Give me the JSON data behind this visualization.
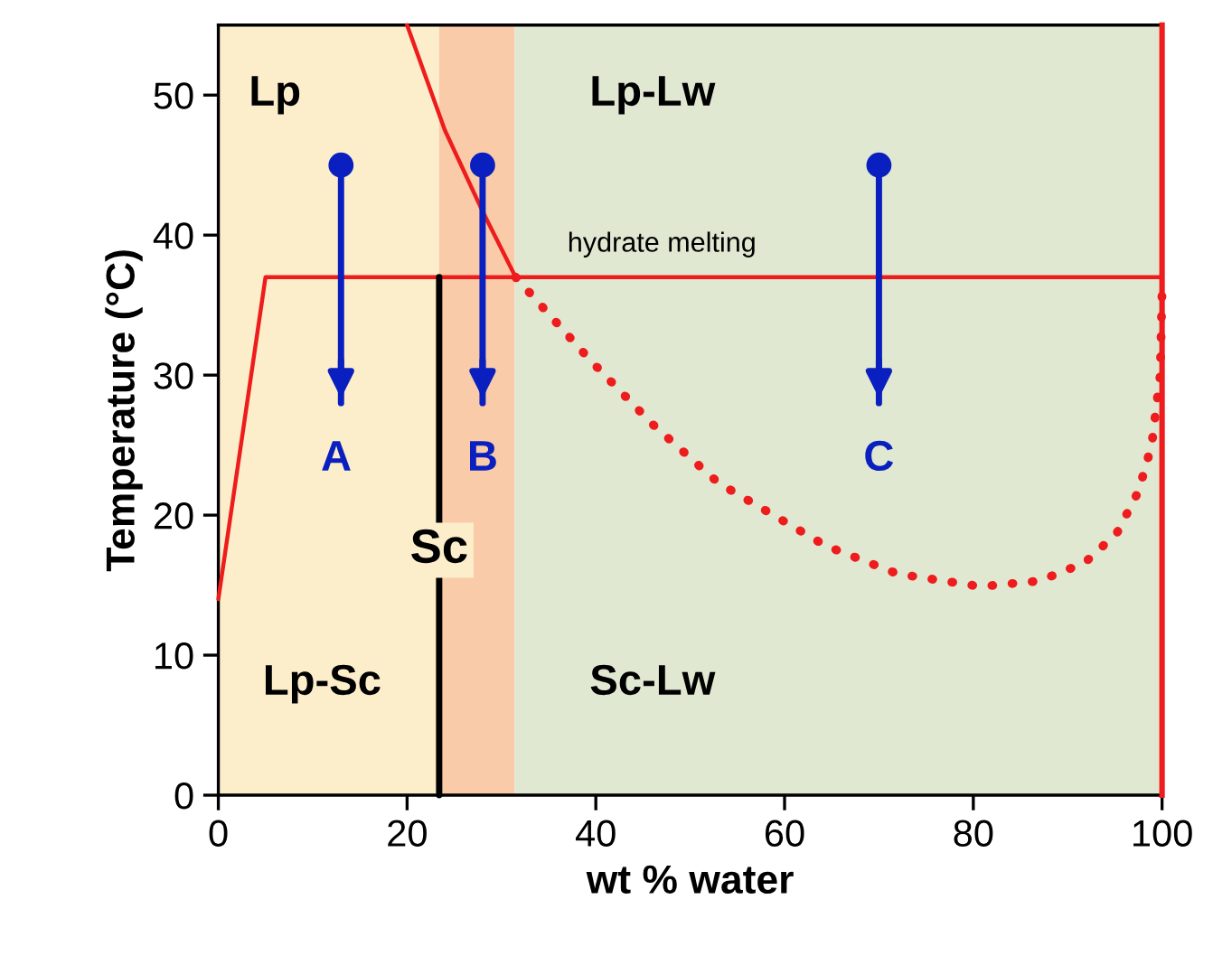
{
  "chart_data": {
    "type": "line",
    "xlabel": "wt % water",
    "ylabel": "Temperature (°C)",
    "xlim": [
      0,
      100
    ],
    "ylim": [
      0,
      55
    ],
    "xticks": [
      0,
      20,
      40,
      60,
      80,
      100
    ],
    "yticks": [
      0,
      10,
      20,
      30,
      40,
      50
    ],
    "grid": false,
    "legend": false,
    "ref_lines": [
      {
        "axis": "x",
        "value": 100,
        "color": "#ee1c1c",
        "line_style": "solid"
      }
    ],
    "bands": [
      {
        "axis": "x",
        "from": 0,
        "to": 23.4,
        "color": "#fdeecb"
      },
      {
        "axis": "x",
        "from": 23.4,
        "to": 31.4,
        "color": "#f9cba9"
      },
      {
        "axis": "x",
        "from": 31.4,
        "to": 100,
        "color": "#e0e8d2"
      }
    ],
    "series": [
      {
        "color": "#ee1c1c",
        "x": [
          0,
          5,
          100
        ],
        "values": [
          14,
          37,
          37
        ],
        "line_style": "solid",
        "marker": "none"
      },
      {
        "color": "#ee1c1c",
        "x": [
          20,
          24,
          28,
          31.5
        ],
        "values": [
          55,
          47.5,
          41.7,
          37
        ],
        "line_style": "solid",
        "marker": "none"
      },
      {
        "color": "#ee1c1c",
        "x": [
          31.5,
          39.5,
          46,
          53,
          64.4,
          72,
          80.8,
          87,
          91.8,
          95.2,
          97.5,
          98.9,
          99.8,
          100
        ],
        "values": [
          37,
          31,
          26.5,
          22.3,
          17.8,
          15.8,
          14.9,
          15.3,
          16.6,
          18.7,
          21.7,
          25,
          30,
          36
        ],
        "line_style": "dotted",
        "marker": "none"
      },
      {
        "color": "#000000",
        "x": [
          23.4,
          23.4
        ],
        "values": [
          0,
          37
        ],
        "line_style": "solid",
        "marker": "none"
      },
      {
        "color": "#0a1fbf",
        "x": [
          13,
          13
        ],
        "values": [
          45,
          28
        ],
        "line_style": "solid",
        "marker": "circle"
      },
      {
        "color": "#0a1fbf",
        "x": [
          28,
          28
        ],
        "values": [
          45,
          28
        ],
        "line_style": "solid",
        "marker": "circle"
      },
      {
        "color": "#0a1fbf",
        "x": [
          70,
          70
        ],
        "values": [
          45,
          28
        ],
        "line_style": "solid",
        "marker": "circle"
      }
    ],
    "annotations": [
      "Lp",
      "Lp-Lw",
      "Lp-Sc",
      "Sc-Lw",
      "Sc",
      "hydrate melting",
      "A",
      "B",
      "C"
    ]
  }
}
